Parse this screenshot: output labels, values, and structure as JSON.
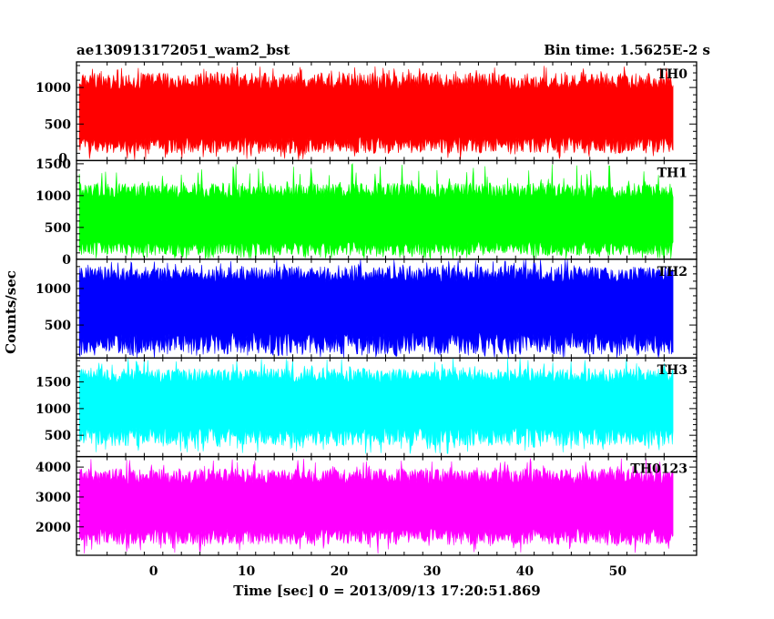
{
  "header": {
    "title": "ae130913172051_wam2_bst",
    "bin_time": "Bin time: 1.5625E-2 s"
  },
  "axes": {
    "ylabel": "Counts/sec",
    "xlabel": "Time [sec] 0 = 2013/09/13 17:20:51.869"
  },
  "chart_data": {
    "type": "line",
    "x_range": [
      -8,
      56
    ],
    "xlim": [
      -8.3,
      58.5
    ],
    "x_ticks": [
      0,
      10,
      20,
      30,
      40,
      50
    ],
    "x_tick_labels": [
      "0",
      "10",
      "20",
      "30",
      "40",
      "50"
    ],
    "panels": [
      {
        "name": "TH0",
        "color": "#ff0000",
        "ylim": [
          0,
          1350
        ],
        "y_ticks": [
          500,
          1000
        ],
        "y_tick_labels": [
          "500",
          "1000"
        ],
        "bottom_label": "0",
        "band": [
          100,
          1200
        ],
        "peak": 1300,
        "trough": 0,
        "mean": 550
      },
      {
        "name": "TH1",
        "color": "#00ff00",
        "ylim": [
          0,
          1550
        ],
        "y_ticks": [
          0,
          500,
          1000,
          1500
        ],
        "y_tick_labels": [
          "0",
          "500",
          "1000",
          "1500"
        ],
        "band": [
          60,
          1200
        ],
        "peak": 1500,
        "trough": 0,
        "mean": 500
      },
      {
        "name": "TH2",
        "color": "#0000ff",
        "ylim": [
          50,
          1400
        ],
        "y_ticks": [
          500,
          1000
        ],
        "y_tick_labels": [
          "500",
          "1000"
        ],
        "band": [
          100,
          1300
        ],
        "peak": 1400,
        "trough": 50,
        "mean": 700
      },
      {
        "name": "TH3",
        "color": "#00ffff",
        "ylim": [
          100,
          1950
        ],
        "y_ticks": [
          500,
          1000,
          1500
        ],
        "y_tick_labels": [
          "500",
          "1000",
          "1500"
        ],
        "band": [
          300,
          1750
        ],
        "peak": 1950,
        "trough": 150,
        "mean": 1000
      },
      {
        "name": "TH0123",
        "color": "#ff00ff",
        "ylim": [
          1050,
          4350
        ],
        "y_ticks": [
          2000,
          3000,
          4000
        ],
        "y_tick_labels": [
          "2000",
          "3000",
          "4000"
        ],
        "band": [
          1400,
          3950
        ],
        "peak": 4300,
        "trough": 1100,
        "mean": 2500
      }
    ]
  }
}
